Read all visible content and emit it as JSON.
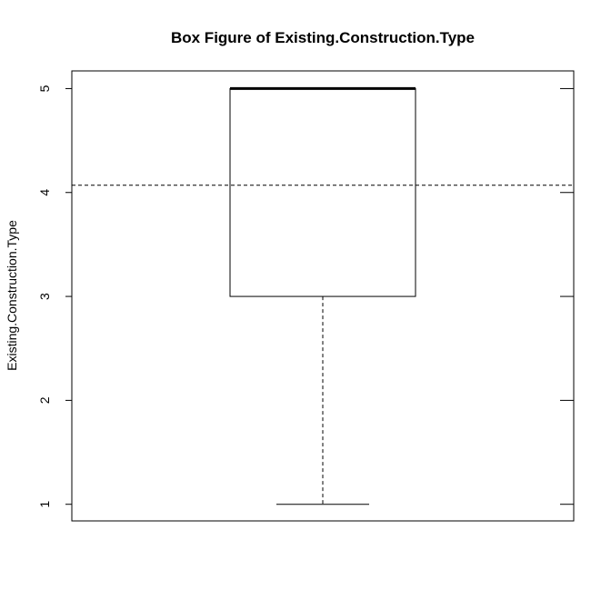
{
  "chart_data": {
    "type": "box",
    "title": "Box Figure of Existing.Construction.Type",
    "ylabel": "Existing.Construction.Type",
    "xlabel": "",
    "ylim": [
      0.84,
      5.17
    ],
    "yticks": [
      1,
      2,
      3,
      4,
      5
    ],
    "ytick_labels": [
      "1",
      "2",
      "3",
      "4",
      "5"
    ],
    "right_ticks": true,
    "box": {
      "min": 1,
      "q1": 3,
      "median": 5,
      "q3": 5,
      "max": 5
    },
    "reference_line": {
      "y": 4.07,
      "style": "dashed"
    }
  }
}
